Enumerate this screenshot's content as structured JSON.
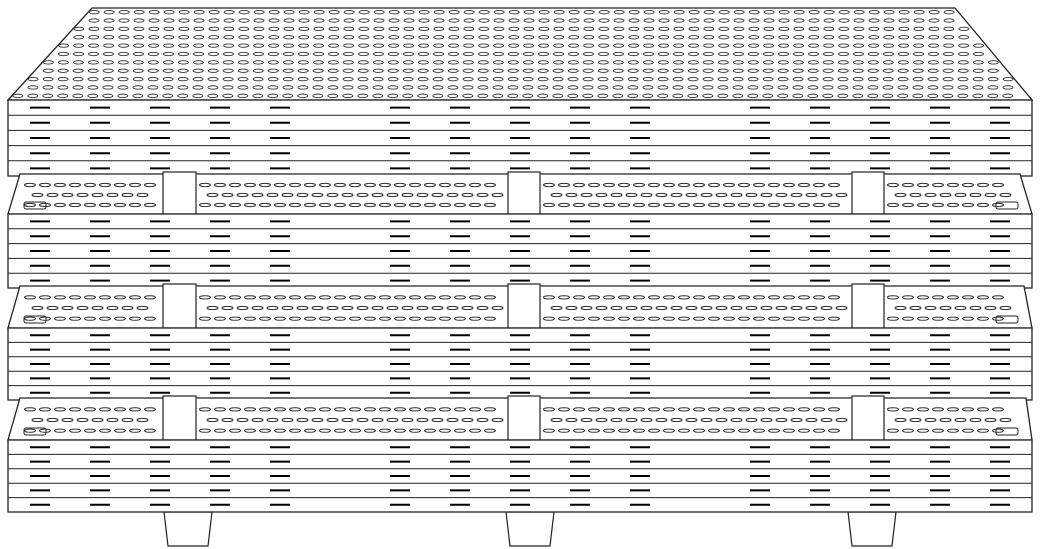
{
  "drawing": {
    "subject": "stacked-pallets",
    "pallet_count": 4,
    "support_block_count": 3,
    "line_color": "#222222",
    "fill_color": "#ffffff",
    "hole_color": "#333333"
  }
}
